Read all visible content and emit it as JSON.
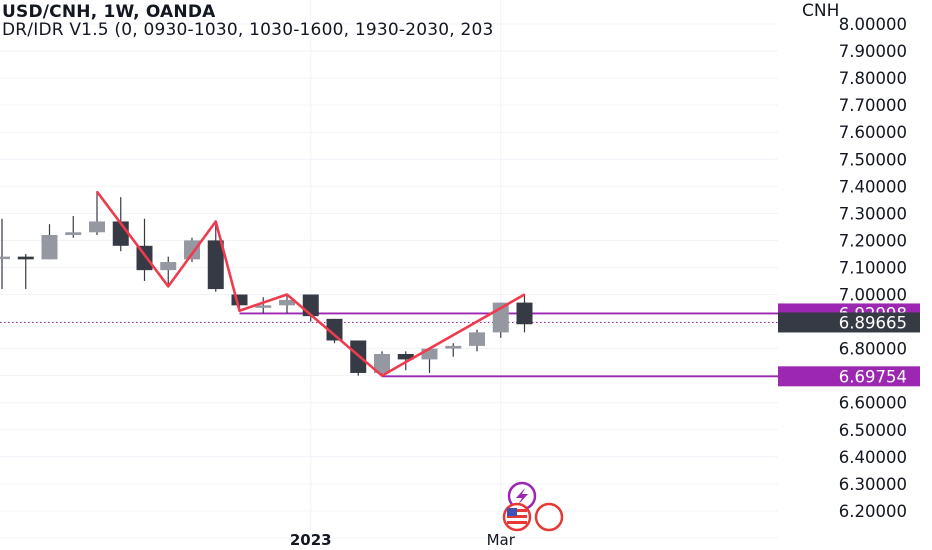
{
  "header": {
    "title": "USD/CNH, 1W, OANDA",
    "indicator": "DR/IDR V1.5 (0, 0930-1030, 1030-1600, 1930-2030, 203"
  },
  "price_axis": {
    "currency": "CNH",
    "ticks": [
      "8.00000",
      "7.90000",
      "7.80000",
      "7.70000",
      "7.60000",
      "7.50000",
      "7.40000",
      "7.30000",
      "7.20000",
      "7.10000",
      "7.00000",
      "6.80000",
      "6.60000",
      "6.50000",
      "6.40000",
      "6.30000",
      "6.20000"
    ]
  },
  "time_axis": {
    "labels": [
      {
        "text": "2023",
        "bold": true,
        "week": 13
      },
      {
        "text": "Mar",
        "bold": false,
        "week": 21
      }
    ]
  },
  "price_labels": [
    {
      "text": "6.92998",
      "value": 6.92998,
      "color": "#9c27b0"
    },
    {
      "text": "6.89665",
      "value": 6.89665,
      "color": "#363a45"
    },
    {
      "text": "6.69754",
      "value": 6.69754,
      "color": "#9c27b0"
    }
  ],
  "colors": {
    "up": "#9598a1",
    "down": "#363a45",
    "zigzag": "#ef3b4d",
    "level": "#9c27b0",
    "last_price_line": "#9c27b0",
    "grid": "#f0f3fa",
    "axis_text": "#131722"
  },
  "chart_data": {
    "type": "candlestick",
    "title": "USD/CNH, 1W, OANDA",
    "ylabel": "CNH",
    "ylim": [
      6.15,
      8.04
    ],
    "grid": true,
    "candles": [
      {
        "o": 7.14,
        "h": 7.28,
        "l": 7.02,
        "c": 7.14
      },
      {
        "o": 7.14,
        "h": 7.15,
        "l": 7.02,
        "c": 7.13
      },
      {
        "o": 7.13,
        "h": 7.26,
        "l": 7.13,
        "c": 7.22
      },
      {
        "o": 7.22,
        "h": 7.29,
        "l": 7.21,
        "c": 7.23
      },
      {
        "o": 7.23,
        "h": 7.38,
        "l": 7.22,
        "c": 7.27
      },
      {
        "o": 7.27,
        "h": 7.36,
        "l": 7.16,
        "c": 7.18
      },
      {
        "o": 7.18,
        "h": 7.28,
        "l": 7.05,
        "c": 7.09
      },
      {
        "o": 7.09,
        "h": 7.14,
        "l": 7.03,
        "c": 7.12
      },
      {
        "o": 7.13,
        "h": 7.21,
        "l": 7.12,
        "c": 7.2
      },
      {
        "o": 7.2,
        "h": 7.26,
        "l": 7.01,
        "c": 7.02
      },
      {
        "o": 7.0,
        "h": 7.0,
        "l": 6.94,
        "c": 6.96
      },
      {
        "o": 6.96,
        "h": 6.99,
        "l": 6.93,
        "c": 6.96
      },
      {
        "o": 6.96,
        "h": 7.0,
        "l": 6.93,
        "c": 6.98
      },
      {
        "o": 7.0,
        "h": 7.0,
        "l": 6.9,
        "c": 6.92
      },
      {
        "o": 6.91,
        "h": 6.91,
        "l": 6.82,
        "c": 6.83
      },
      {
        "o": 6.83,
        "h": 6.83,
        "l": 6.7,
        "c": 6.71
      },
      {
        "o": 6.71,
        "h": 6.79,
        "l": 6.7,
        "c": 6.78
      },
      {
        "o": 6.78,
        "h": 6.79,
        "l": 6.72,
        "c": 6.76
      },
      {
        "o": 6.76,
        "h": 6.8,
        "l": 6.71,
        "c": 6.8
      },
      {
        "o": 6.8,
        "h": 6.82,
        "l": 6.77,
        "c": 6.81
      },
      {
        "o": 6.81,
        "h": 6.87,
        "l": 6.79,
        "c": 6.86
      },
      {
        "o": 6.86,
        "h": 6.97,
        "l": 6.84,
        "c": 6.97
      },
      {
        "o": 6.97,
        "h": 7.0,
        "l": 6.86,
        "c": 6.89
      }
    ],
    "zigzag": [
      {
        "week": 4,
        "price": 7.38
      },
      {
        "week": 7,
        "price": 7.03
      },
      {
        "week": 9,
        "price": 7.27
      },
      {
        "week": 10,
        "price": 6.94
      },
      {
        "week": 12,
        "price": 7.0
      },
      {
        "week": 16,
        "price": 6.7
      },
      {
        "week": 22,
        "price": 7.0
      }
    ],
    "levels": [
      {
        "price": 6.92998,
        "from_week": 10
      },
      {
        "price": 6.69754,
        "from_week": 16
      }
    ],
    "last_price": 6.89665
  }
}
